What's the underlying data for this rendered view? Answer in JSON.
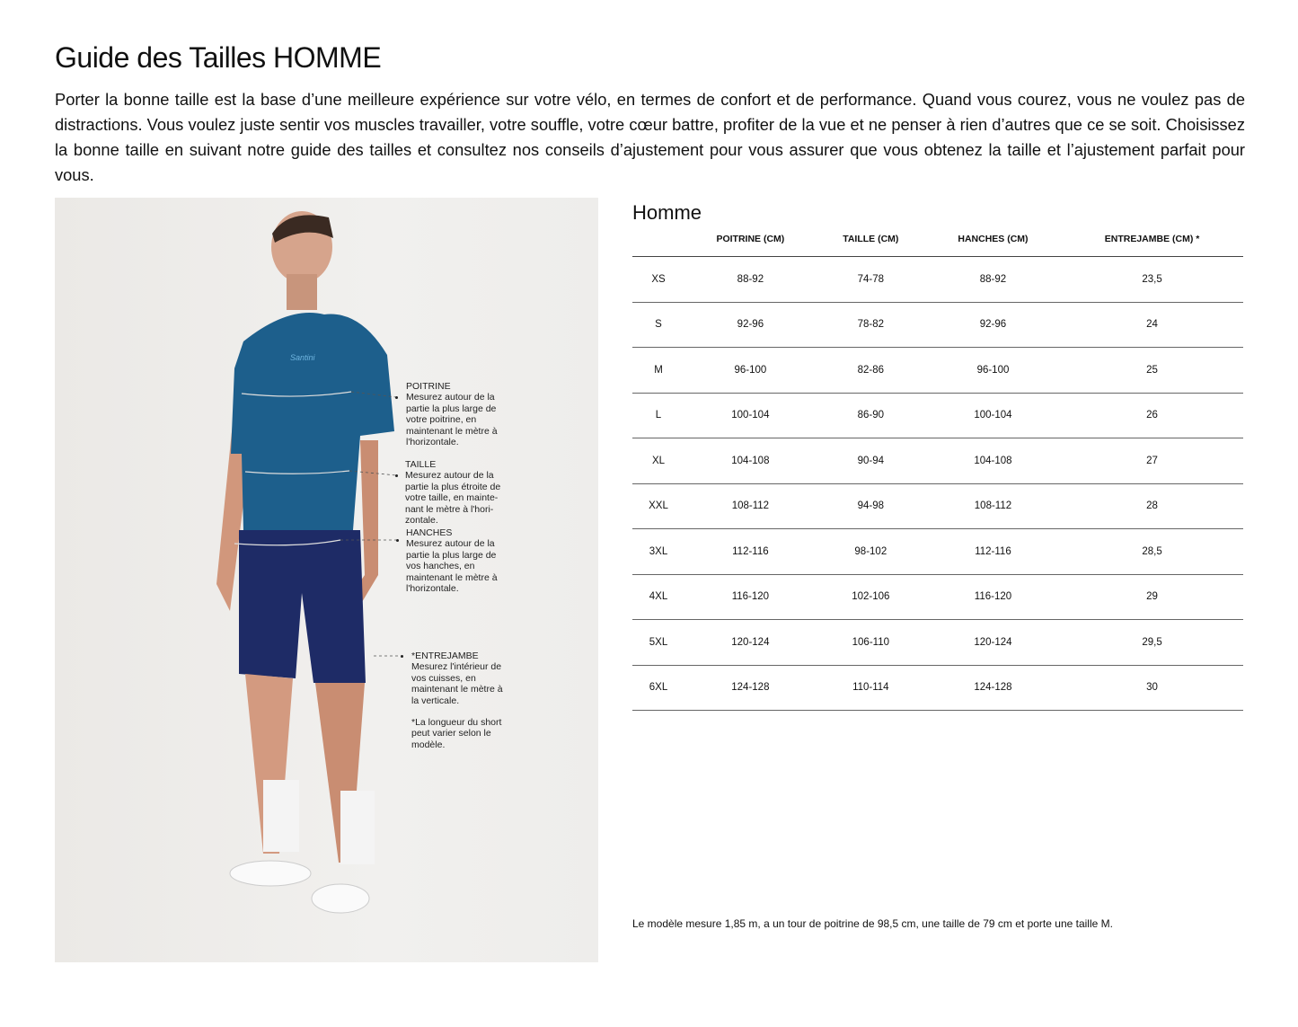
{
  "title": "Guide des Tailles HOMME",
  "intro": "Porter la bonne taille est la base d’une meilleure expérience sur votre vélo, en termes de confort et de performance. Quand vous courez, vous ne voulez pas de distractions. Vous voulez juste sentir vos muscles travailler, votre souffle, votre cœur battre, profiter de la vue et ne penser à rien d’autres que ce se soit. Choisissez la bonne taille en suivant notre guide des tailles et consultez nos conseils d’ajustement pour vous assurer que vous obtenez la taille et l’ajustement parfait pour vous.",
  "photo": {
    "jersey_logo": "Santini",
    "notes": {
      "poitrine": {
        "title": "POITRINE",
        "text": "Mesurez autour de la partie la plus large de votre poitrine, en maintenant le mètre à l'horizontale."
      },
      "taille": {
        "title": "TAILLE",
        "text": "Mesurez autour de la partie la plus étroite de votre taille, en mainte-nant le mètre à l'hori-zontale."
      },
      "hanches": {
        "title": "HANCHES",
        "text": "Mesurez autour de la partie la plus large de vos hanches, en maintenant le mètre à l'horizontale."
      },
      "entrejambe": {
        "title": "*ENTREJAMBE",
        "text": "Mesurez l'intérieur de vos cuisses, en maintenant le mètre à la verticale.",
        "footnote": "*La longueur du short peut varier selon le modèle."
      }
    }
  },
  "table": {
    "title": "Homme",
    "headers": [
      "",
      "POITRINE (CM)",
      "TAILLE (CM)",
      "HANCHES (CM)",
      "ENTREJAMBE (CM) *"
    ],
    "rows": [
      [
        "XS",
        "88-92",
        "74-78",
        "88-92",
        "23,5"
      ],
      [
        "S",
        "92-96",
        "78-82",
        "92-96",
        "24"
      ],
      [
        "M",
        "96-100",
        "82-86",
        "96-100",
        "25"
      ],
      [
        "L",
        "100-104",
        "86-90",
        "100-104",
        "26"
      ],
      [
        "XL",
        "104-108",
        "90-94",
        "104-108",
        "27"
      ],
      [
        "XXL",
        "108-112",
        "94-98",
        "108-112",
        "28"
      ],
      [
        "3XL",
        "112-116",
        "98-102",
        "112-116",
        "28,5"
      ],
      [
        "4XL",
        "116-120",
        "102-106",
        "116-120",
        "29"
      ],
      [
        "5XL",
        "120-124",
        "106-110",
        "120-124",
        "29,5"
      ],
      [
        "6XL",
        "124-128",
        "110-114",
        "124-128",
        "30"
      ]
    ]
  },
  "footnote": "Le modèle mesure 1,85 m, a un tour de poitrine de 98,5 cm, une taille de 79 cm et porte une taille M."
}
